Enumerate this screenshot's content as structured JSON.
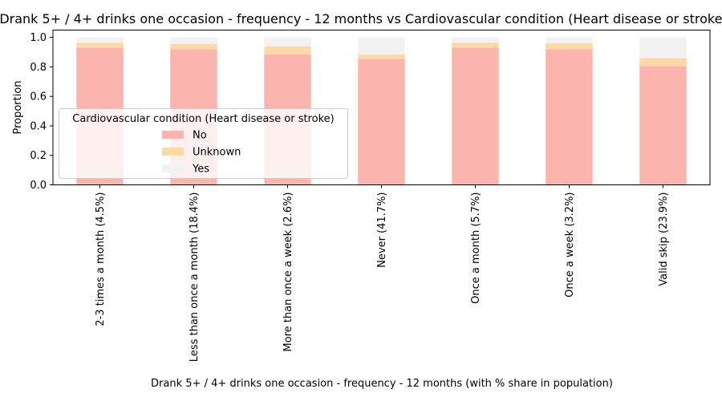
{
  "chart_data": {
    "type": "bar",
    "stacked": true,
    "title": "Drank 5+ / 4+ drinks one occasion - frequency - 12 months vs Cardiovascular condition (Heart disease or stroke)",
    "xlabel": "Drank 5+ / 4+ drinks one occasion - frequency - 12 months (with % share in population)",
    "ylabel": "Proportion",
    "ylim": [
      0,
      1.05
    ],
    "yticks": [
      "0.0",
      "0.2",
      "0.4",
      "0.6",
      "0.8",
      "1.0"
    ],
    "categories": [
      "2-3 times a month (4.5%)",
      "Less than once a month (18.4%)",
      "More than once a week (2.6%)",
      "Never (41.7%)",
      "Once a month (5.7%)",
      "Once a week (3.2%)",
      "Valid skip (23.9%)"
    ],
    "series": [
      {
        "name": "No",
        "color": "#fbb4ae",
        "values": [
          0.93,
          0.92,
          0.885,
          0.855,
          0.93,
          0.92,
          0.805
        ]
      },
      {
        "name": "Unknown",
        "color": "#fed9a6",
        "values": [
          0.035,
          0.035,
          0.055,
          0.03,
          0.035,
          0.04,
          0.055
        ]
      },
      {
        "name": "Yes",
        "color": "#f2f2f2",
        "values": [
          0.035,
          0.045,
          0.06,
          0.115,
          0.035,
          0.04,
          0.14
        ]
      }
    ],
    "legend": {
      "title": "Cardiovascular condition (Heart disease or stroke)",
      "placement": "center-left"
    },
    "grid": false
  }
}
